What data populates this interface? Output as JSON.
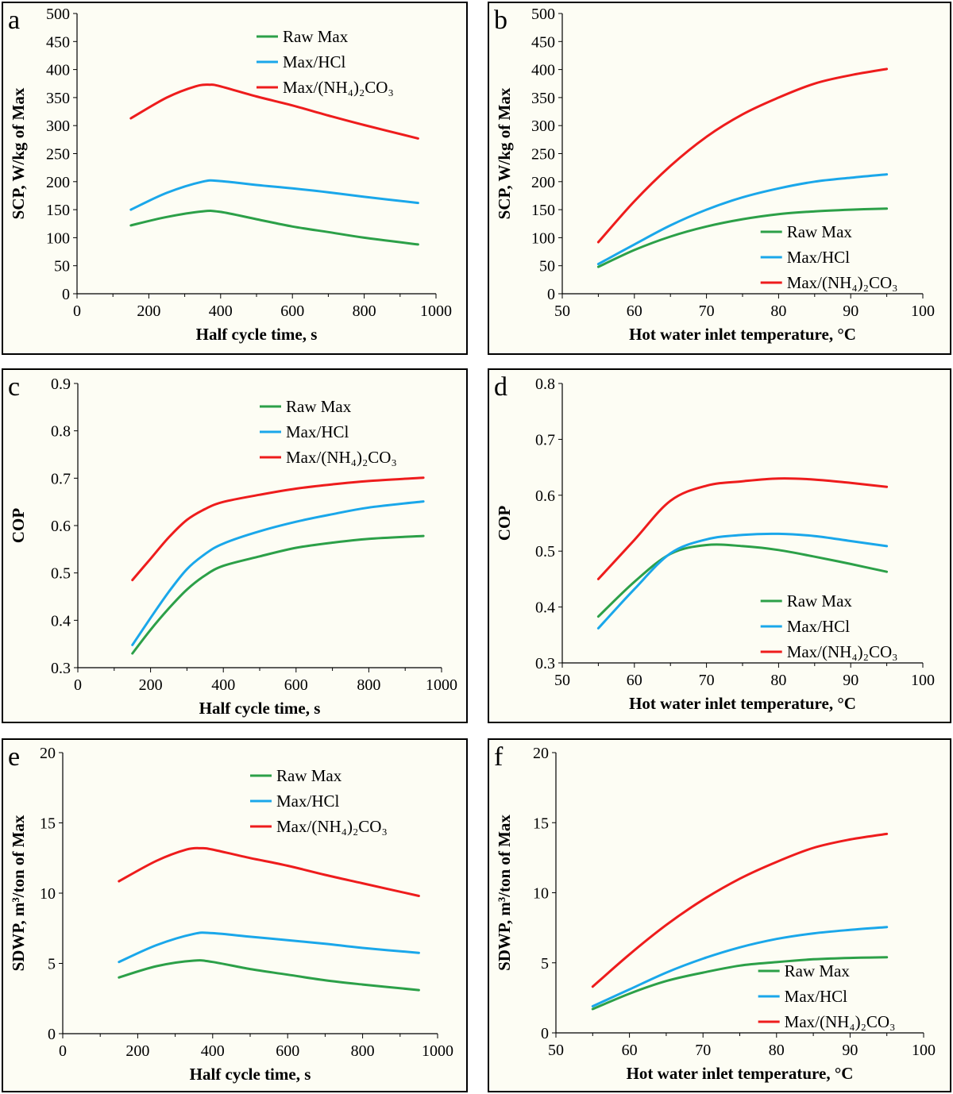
{
  "colors": {
    "raw": "#2ca048",
    "hcl": "#1aa7ea",
    "nh4": "#ee1c1c"
  },
  "chart_data": [
    {
      "panel": "a",
      "type": "line",
      "xlabel": "Half cycle time, s",
      "ylabel": "SCP, W/kg of Max",
      "xlim": [
        0,
        1000
      ],
      "ylim": [
        0,
        500
      ],
      "xticks": [
        0,
        200,
        400,
        600,
        800,
        1000
      ],
      "xtick_labels": [
        "0",
        "200",
        "400",
        "600",
        "800",
        "1000"
      ],
      "yticks": [
        0,
        50,
        100,
        150,
        200,
        250,
        300,
        350,
        400,
        450,
        500
      ],
      "ytick_labels": [
        "0",
        "50",
        "100",
        "150",
        "200",
        "250",
        "300",
        "350",
        "400",
        "450",
        "500"
      ],
      "legend_position": "top-center",
      "series": [
        {
          "name": "Raw Max",
          "color_key": "raw",
          "x": [
            150,
            250,
            350,
            400,
            500,
            600,
            700,
            800,
            950
          ],
          "y": [
            122,
            137,
            147,
            146,
            133,
            120,
            110,
            100,
            88
          ]
        },
        {
          "name": "Max/HCl",
          "color_key": "hcl",
          "x": [
            150,
            250,
            350,
            400,
            500,
            600,
            700,
            800,
            950
          ],
          "y": [
            150,
            180,
            200,
            201,
            194,
            188,
            181,
            173,
            162
          ]
        },
        {
          "name": "Max/(NH₄)₂CO₃",
          "color_key": "nh4",
          "x": [
            150,
            250,
            330,
            370,
            400,
            500,
            600,
            700,
            800,
            950
          ],
          "y": [
            313,
            350,
            370,
            373,
            370,
            352,
            336,
            318,
            301,
            277
          ]
        }
      ]
    },
    {
      "panel": "b",
      "type": "line",
      "xlabel": "Hot water inlet temperature, °C",
      "ylabel": "SCP, W/kg of Max",
      "xlim": [
        50,
        100
      ],
      "ylim": [
        0,
        500
      ],
      "xticks": [
        50,
        60,
        70,
        80,
        90,
        100
      ],
      "xtick_labels": [
        "50",
        "60",
        "70",
        "80",
        "90",
        "100"
      ],
      "yticks": [
        0,
        50,
        100,
        150,
        200,
        250,
        300,
        350,
        400,
        450,
        500
      ],
      "ytick_labels": [
        "0",
        "50",
        "100",
        "150",
        "200",
        "250",
        "300",
        "350",
        "400",
        "450",
        "500"
      ],
      "legend_position": "bottom-right",
      "series": [
        {
          "name": "Raw Max",
          "color_key": "raw",
          "x": [
            55,
            60,
            65,
            70,
            75,
            80,
            85,
            90,
            95
          ],
          "y": [
            48,
            78,
            102,
            120,
            133,
            142,
            147,
            150,
            152
          ]
        },
        {
          "name": "Max/HCl",
          "color_key": "hcl",
          "x": [
            55,
            60,
            65,
            70,
            75,
            80,
            85,
            90,
            95
          ],
          "y": [
            53,
            88,
            122,
            150,
            172,
            188,
            200,
            207,
            213
          ]
        },
        {
          "name": "Max/(NH₄)₂CO₃",
          "color_key": "nh4",
          "x": [
            55,
            60,
            65,
            70,
            75,
            80,
            85,
            90,
            95
          ],
          "y": [
            92,
            165,
            228,
            280,
            320,
            350,
            375,
            390,
            401
          ]
        }
      ]
    },
    {
      "panel": "c",
      "type": "line",
      "xlabel": "Half cycle time, s",
      "ylabel": "COP",
      "xlim": [
        0,
        1000
      ],
      "ylim": [
        0.3,
        0.9
      ],
      "xticks": [
        0,
        200,
        400,
        600,
        800,
        1000
      ],
      "xtick_labels": [
        "0",
        "200",
        "400",
        "600",
        "800",
        "1000"
      ],
      "yticks": [
        0.3,
        0.4,
        0.5,
        0.6,
        0.7,
        0.8,
        0.9
      ],
      "ytick_labels": [
        "0.3",
        "0.4",
        "0.5",
        "0.6",
        "0.7",
        "0.8",
        "0.9"
      ],
      "legend_position": "top-center",
      "series": [
        {
          "name": "Raw Max",
          "color_key": "raw",
          "x": [
            150,
            200,
            250,
            300,
            350,
            400,
            500,
            600,
            700,
            800,
            950
          ],
          "y": [
            0.33,
            0.38,
            0.425,
            0.465,
            0.495,
            0.515,
            0.535,
            0.553,
            0.564,
            0.572,
            0.578
          ]
        },
        {
          "name": "Max/HCl",
          "color_key": "hcl",
          "x": [
            150,
            200,
            250,
            300,
            350,
            400,
            500,
            600,
            700,
            800,
            950
          ],
          "y": [
            0.348,
            0.405,
            0.46,
            0.508,
            0.54,
            0.562,
            0.588,
            0.608,
            0.624,
            0.638,
            0.651
          ]
        },
        {
          "name": "Max/(NH₄)₂CO₃",
          "color_key": "nh4",
          "x": [
            150,
            200,
            250,
            300,
            350,
            400,
            500,
            600,
            700,
            800,
            950
          ],
          "y": [
            0.485,
            0.53,
            0.575,
            0.612,
            0.635,
            0.65,
            0.665,
            0.678,
            0.687,
            0.694,
            0.701
          ]
        }
      ]
    },
    {
      "panel": "d",
      "type": "line",
      "xlabel": "Hot water inlet temperature, °C",
      "ylabel": "COP",
      "xlim": [
        50,
        100
      ],
      "ylim": [
        0.3,
        0.8
      ],
      "xticks": [
        50,
        60,
        70,
        80,
        90,
        100
      ],
      "xtick_labels": [
        "50",
        "60",
        "70",
        "80",
        "90",
        "100"
      ],
      "yticks": [
        0.3,
        0.4,
        0.5,
        0.6,
        0.7,
        0.8
      ],
      "ytick_labels": [
        "0.3",
        "0.4",
        "0.5",
        "0.6",
        "0.7",
        "0.8"
      ],
      "legend_position": "bottom-right",
      "series": [
        {
          "name": "Raw Max",
          "color_key": "raw",
          "x": [
            55,
            60,
            65,
            70,
            75,
            80,
            85,
            90,
            95
          ],
          "y": [
            0.383,
            0.445,
            0.495,
            0.511,
            0.509,
            0.502,
            0.49,
            0.477,
            0.463
          ]
        },
        {
          "name": "Max/HCl",
          "color_key": "hcl",
          "x": [
            55,
            60,
            65,
            70,
            75,
            80,
            85,
            90,
            95
          ],
          "y": [
            0.362,
            0.432,
            0.496,
            0.521,
            0.529,
            0.531,
            0.527,
            0.518,
            0.509
          ]
        },
        {
          "name": "Max/(NH₄)₂CO₃",
          "color_key": "nh4",
          "x": [
            55,
            60,
            65,
            70,
            75,
            80,
            85,
            90,
            95
          ],
          "y": [
            0.45,
            0.52,
            0.59,
            0.617,
            0.625,
            0.63,
            0.628,
            0.622,
            0.615
          ]
        }
      ]
    },
    {
      "panel": "e",
      "type": "line",
      "xlabel": "Half cycle time, s",
      "ylabel": "SDWP, m³/ton of Max",
      "xlim": [
        0,
        1000
      ],
      "ylim": [
        0,
        20
      ],
      "xticks": [
        0,
        200,
        400,
        600,
        800,
        1000
      ],
      "xtick_labels": [
        "0",
        "200",
        "400",
        "600",
        "800",
        "1000"
      ],
      "yticks": [
        0,
        5,
        10,
        15,
        20
      ],
      "ytick_labels": [
        "0",
        "5",
        "10",
        "15",
        "20"
      ],
      "legend_position": "top-center",
      "series": [
        {
          "name": "Raw Max",
          "color_key": "raw",
          "x": [
            150,
            250,
            350,
            400,
            500,
            600,
            700,
            800,
            950
          ],
          "y": [
            4.0,
            4.8,
            5.2,
            5.1,
            4.6,
            4.2,
            3.8,
            3.5,
            3.1
          ]
        },
        {
          "name": "Max/HCl",
          "color_key": "hcl",
          "x": [
            150,
            250,
            350,
            400,
            500,
            600,
            700,
            800,
            950
          ],
          "y": [
            5.1,
            6.3,
            7.1,
            7.15,
            6.9,
            6.65,
            6.4,
            6.1,
            5.75
          ]
        },
        {
          "name": "Max/(NH₄)₂CO₃",
          "color_key": "nh4",
          "x": [
            150,
            250,
            330,
            370,
            400,
            500,
            600,
            700,
            800,
            950
          ],
          "y": [
            10.85,
            12.3,
            13.1,
            13.2,
            13.1,
            12.5,
            11.95,
            11.3,
            10.7,
            9.8
          ]
        }
      ]
    },
    {
      "panel": "f",
      "type": "line",
      "xlabel": "Hot water inlet temperature, °C",
      "ylabel": "SDWP, m³/ton of Max",
      "xlim": [
        50,
        100
      ],
      "ylim": [
        0,
        20
      ],
      "xticks": [
        50,
        60,
        70,
        80,
        90,
        100
      ],
      "xtick_labels": [
        "50",
        "60",
        "70",
        "80",
        "90",
        "100"
      ],
      "yticks": [
        0,
        5,
        10,
        15,
        20
      ],
      "ytick_labels": [
        "0",
        "5",
        "10",
        "15",
        "20"
      ],
      "legend_position": "bottom-right",
      "series": [
        {
          "name": "Raw Max",
          "color_key": "raw",
          "x": [
            55,
            60,
            65,
            70,
            75,
            80,
            85,
            90,
            95
          ],
          "y": [
            1.7,
            2.8,
            3.7,
            4.3,
            4.8,
            5.05,
            5.25,
            5.35,
            5.4
          ]
        },
        {
          "name": "Max/HCl",
          "color_key": "hcl",
          "x": [
            55,
            60,
            65,
            70,
            75,
            80,
            85,
            90,
            95
          ],
          "y": [
            1.9,
            3.1,
            4.3,
            5.3,
            6.1,
            6.7,
            7.1,
            7.35,
            7.55
          ]
        },
        {
          "name": "Max/(NH₄)₂CO₃",
          "color_key": "nh4",
          "x": [
            55,
            60,
            65,
            70,
            75,
            80,
            85,
            90,
            95
          ],
          "y": [
            3.3,
            5.6,
            7.7,
            9.5,
            11.0,
            12.2,
            13.2,
            13.8,
            14.2
          ]
        }
      ]
    }
  ]
}
